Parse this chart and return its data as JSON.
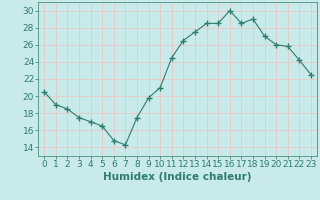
{
  "x": [
    0,
    1,
    2,
    3,
    4,
    5,
    6,
    7,
    8,
    9,
    10,
    11,
    12,
    13,
    14,
    15,
    16,
    17,
    18,
    19,
    20,
    21,
    22,
    23
  ],
  "y": [
    20.5,
    19.0,
    18.5,
    17.5,
    17.0,
    16.5,
    14.8,
    14.3,
    17.5,
    19.8,
    21.0,
    24.5,
    26.5,
    27.5,
    28.5,
    28.5,
    30.0,
    28.5,
    29.0,
    27.0,
    26.0,
    25.8,
    24.2,
    22.5
  ],
  "line_color": "#2e7d6e",
  "marker": "+",
  "marker_size": 4,
  "bg_color": "#c8eae8",
  "grid_color": "#e8c8c8",
  "xlabel": "Humidex (Indice chaleur)",
  "ylabel": "",
  "xlim": [
    -0.5,
    23.5
  ],
  "ylim": [
    13,
    31
  ],
  "yticks": [
    14,
    16,
    18,
    20,
    22,
    24,
    26,
    28,
    30
  ],
  "xticks": [
    0,
    1,
    2,
    3,
    4,
    5,
    6,
    7,
    8,
    9,
    10,
    11,
    12,
    13,
    14,
    15,
    16,
    17,
    18,
    19,
    20,
    21,
    22,
    23
  ],
  "xlabel_fontsize": 7.5,
  "tick_fontsize": 6.5
}
